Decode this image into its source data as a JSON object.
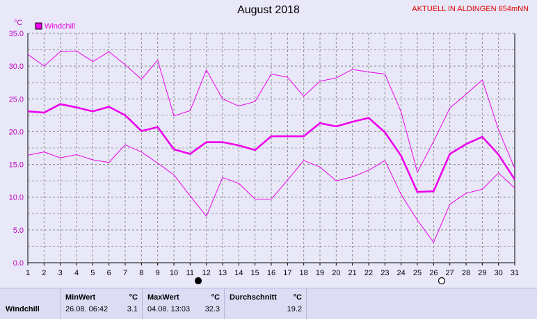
{
  "title": "August 2018",
  "location_label": "AKTUELL IN ALDINGEN 654mNN",
  "chart_data": {
    "type": "line",
    "y_unit": "°C",
    "ylim": [
      0,
      35
    ],
    "y_ticks": [
      "0.0",
      "5.0",
      "10.0",
      "15.0",
      "20.0",
      "25.0",
      "30.0",
      "35.0"
    ],
    "x": [
      1,
      2,
      3,
      4,
      5,
      6,
      7,
      8,
      9,
      10,
      11,
      12,
      13,
      14,
      15,
      16,
      17,
      18,
      19,
      20,
      21,
      22,
      23,
      24,
      25,
      26,
      27,
      28,
      29,
      30,
      31
    ],
    "grid": true,
    "legend": "top-left",
    "series": [
      {
        "name": "Windchill",
        "role": "max",
        "color": "#ee00ee",
        "values": [
          31.8,
          30.0,
          32.2,
          32.3,
          30.7,
          32.2,
          30.2,
          28.0,
          30.9,
          22.4,
          23.2,
          29.4,
          25.0,
          23.9,
          24.6,
          28.8,
          28.3,
          25.4,
          27.7,
          28.2,
          29.5,
          29.1,
          28.8,
          23.0,
          13.8,
          18.5,
          23.6,
          25.7,
          27.9,
          20.3,
          14.4
        ]
      },
      {
        "name": "",
        "role": "avg",
        "color": "#ee00ee",
        "values": [
          23.1,
          22.9,
          24.2,
          23.7,
          23.1,
          23.8,
          22.5,
          20.1,
          20.7,
          17.3,
          16.6,
          18.4,
          18.4,
          17.9,
          17.2,
          19.3,
          19.3,
          19.3,
          21.3,
          20.8,
          21.5,
          22.1,
          19.9,
          16.3,
          10.8,
          10.9,
          16.6,
          18.1,
          19.2,
          16.5,
          12.7
        ]
      },
      {
        "name": "",
        "role": "min",
        "color": "#ee00ee",
        "values": [
          16.4,
          16.9,
          16.0,
          16.5,
          15.7,
          15.3,
          18.0,
          16.9,
          15.2,
          13.4,
          10.2,
          7.1,
          13.0,
          12.1,
          9.7,
          9.7,
          12.6,
          15.6,
          14.6,
          12.5,
          13.1,
          14.1,
          15.6,
          10.4,
          6.5,
          3.1,
          8.9,
          10.6,
          11.2,
          13.7,
          11.4
        ]
      }
    ],
    "moon_markers": [
      {
        "day": 11.5,
        "phase": "new"
      },
      {
        "day": 26.5,
        "phase": "full"
      }
    ]
  },
  "stats": {
    "row_label": "Windchill",
    "min_header": "MinWert",
    "max_header": "MaxWert",
    "avg_header": "Durchschnitt",
    "unit": "°C",
    "min_datetime": "26.08.  06:42",
    "min_value": "3.1",
    "max_datetime": "04.08.  13:03",
    "max_value": "32.3",
    "avg_value": "19.2"
  }
}
